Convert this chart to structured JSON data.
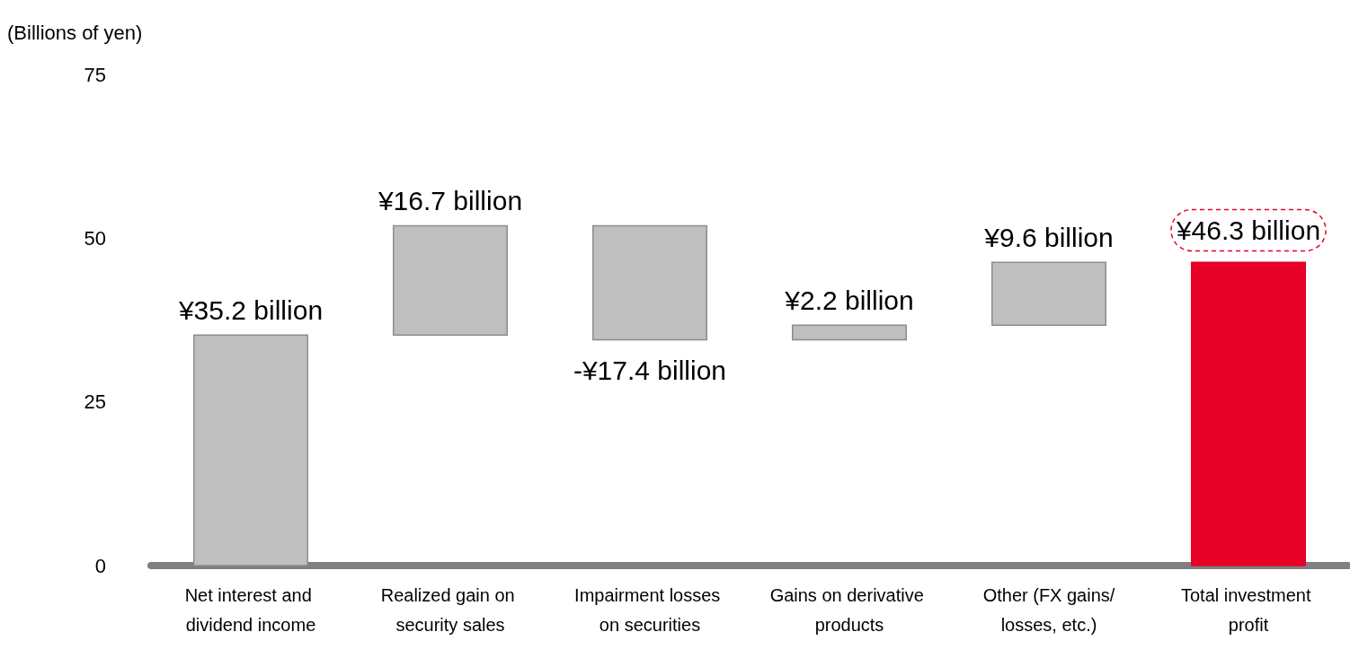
{
  "chart_data": {
    "type": "bar",
    "ylabel": "(Billions of yen)",
    "categories": [
      "Net interest and dividend income",
      "Realized gain on security sales",
      "Impairment losses on securities",
      "Gains on derivative products",
      "Other (FX gains/losses, etc.)",
      "Total investment profit"
    ],
    "base": [
      0,
      35.2,
      51.9,
      34.5,
      36.7,
      0
    ],
    "values": [
      35.2,
      16.7,
      -17.4,
      2.2,
      9.6,
      46.3
    ],
    "colors": [
      "#bfbfbf",
      "#bfbfbf",
      "#bfbfbf",
      "#bfbfbf",
      "#bfbfbf",
      "#e60026"
    ],
    "value_labels": [
      "¥35.2 billion",
      "¥16.7 billion",
      "-¥17.4 billion",
      "¥2.2 billion",
      "¥9.6 billion",
      "¥46.3 billion"
    ],
    "ylim": [
      0,
      75
    ],
    "yticks": [
      0,
      25,
      50,
      75
    ],
    "grid": false
  }
}
